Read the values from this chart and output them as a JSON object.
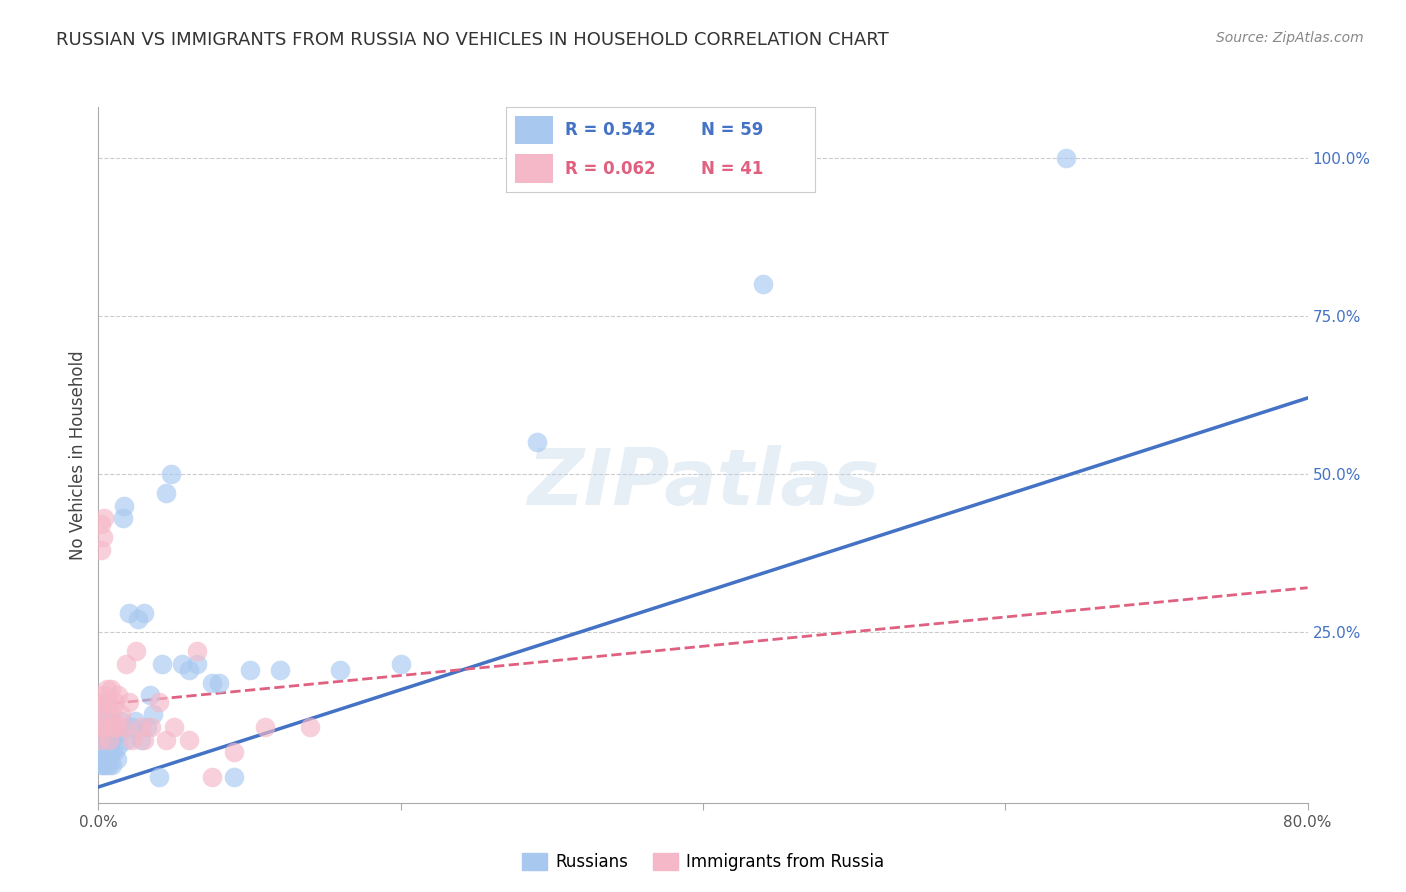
{
  "title": "RUSSIAN VS IMMIGRANTS FROM RUSSIA NO VEHICLES IN HOUSEHOLD CORRELATION CHART",
  "source": "Source: ZipAtlas.com",
  "ylabel": "No Vehicles in Household",
  "xlim": [
    0.0,
    0.8
  ],
  "ylim": [
    -0.02,
    1.08
  ],
  "yticks_right": [
    0.0,
    0.25,
    0.5,
    0.75,
    1.0
  ],
  "yticklabels_right": [
    "",
    "25.0%",
    "50.0%",
    "75.0%",
    "100.0%"
  ],
  "grid_color": "#cccccc",
  "background_color": "#ffffff",
  "watermark": "ZIPatlas",
  "blue_color": "#a8c8f0",
  "pink_color": "#f5b8c8",
  "blue_line_color": "#4472c4",
  "pink_line_color": "#e06080",
  "legend_blue_r": "R = 0.542",
  "legend_blue_n": "N = 59",
  "legend_pink_r": "R = 0.062",
  "legend_pink_n": "N = 41",
  "legend_label_blue": "Russians",
  "legend_label_pink": "Immigrants from Russia",
  "russians_x": [
    0.001,
    0.001,
    0.001,
    0.002,
    0.002,
    0.002,
    0.002,
    0.003,
    0.003,
    0.003,
    0.003,
    0.004,
    0.004,
    0.005,
    0.005,
    0.005,
    0.006,
    0.006,
    0.007,
    0.007,
    0.008,
    0.008,
    0.009,
    0.009,
    0.01,
    0.011,
    0.012,
    0.013,
    0.014,
    0.015,
    0.016,
    0.017,
    0.018,
    0.02,
    0.022,
    0.024,
    0.026,
    0.028,
    0.03,
    0.032,
    0.034,
    0.036,
    0.04,
    0.042,
    0.045,
    0.048,
    0.055,
    0.06,
    0.065,
    0.075,
    0.08,
    0.09,
    0.1,
    0.12,
    0.16,
    0.2,
    0.29,
    0.44,
    0.64
  ],
  "russians_y": [
    0.05,
    0.08,
    0.1,
    0.04,
    0.06,
    0.08,
    0.12,
    0.04,
    0.07,
    0.09,
    0.11,
    0.06,
    0.09,
    0.04,
    0.07,
    0.1,
    0.05,
    0.09,
    0.04,
    0.08,
    0.06,
    0.11,
    0.04,
    0.08,
    0.06,
    0.09,
    0.05,
    0.07,
    0.09,
    0.11,
    0.43,
    0.45,
    0.08,
    0.28,
    0.1,
    0.11,
    0.27,
    0.08,
    0.28,
    0.1,
    0.15,
    0.12,
    0.02,
    0.2,
    0.47,
    0.5,
    0.2,
    0.19,
    0.2,
    0.17,
    0.17,
    0.02,
    0.19,
    0.19,
    0.19,
    0.2,
    0.55,
    0.8,
    1.0
  ],
  "immigrants_x": [
    0.001,
    0.001,
    0.002,
    0.002,
    0.002,
    0.003,
    0.003,
    0.003,
    0.004,
    0.004,
    0.005,
    0.005,
    0.006,
    0.006,
    0.007,
    0.007,
    0.008,
    0.008,
    0.009,
    0.01,
    0.011,
    0.012,
    0.013,
    0.015,
    0.016,
    0.018,
    0.02,
    0.022,
    0.025,
    0.028,
    0.03,
    0.035,
    0.04,
    0.045,
    0.05,
    0.06,
    0.065,
    0.075,
    0.09,
    0.11,
    0.14
  ],
  "immigrants_y": [
    0.08,
    0.13,
    0.1,
    0.38,
    0.42,
    0.1,
    0.4,
    0.15,
    0.43,
    0.14,
    0.1,
    0.14,
    0.12,
    0.16,
    0.08,
    0.14,
    0.1,
    0.16,
    0.12,
    0.1,
    0.14,
    0.1,
    0.15,
    0.12,
    0.1,
    0.2,
    0.14,
    0.08,
    0.22,
    0.1,
    0.08,
    0.1,
    0.14,
    0.08,
    0.1,
    0.08,
    0.22,
    0.02,
    0.06,
    0.1,
    0.1
  ],
  "blue_trendline_x": [
    0.0,
    0.8
  ],
  "blue_trendline_y": [
    0.005,
    0.62
  ],
  "pink_trendline_x": [
    0.0,
    0.8
  ],
  "pink_trendline_y": [
    0.135,
    0.32
  ]
}
